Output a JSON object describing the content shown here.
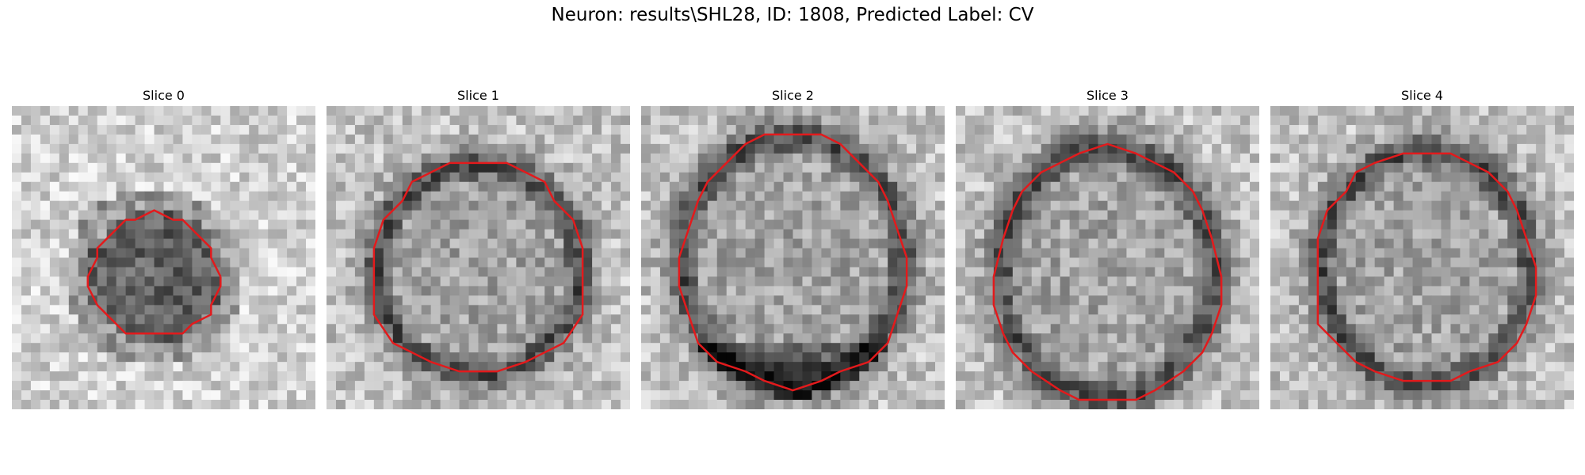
{
  "figure": {
    "title": "Neuron: results\\SHL28, ID: 1808, Predicted Label: CV",
    "contour_color": "#e31a1c",
    "colormap": "grayscale"
  },
  "slices": [
    {
      "title": "Slice 0"
    },
    {
      "title": "Slice 1"
    },
    {
      "title": "Slice 2"
    },
    {
      "title": "Slice 3"
    },
    {
      "title": "Slice 4"
    }
  ]
}
